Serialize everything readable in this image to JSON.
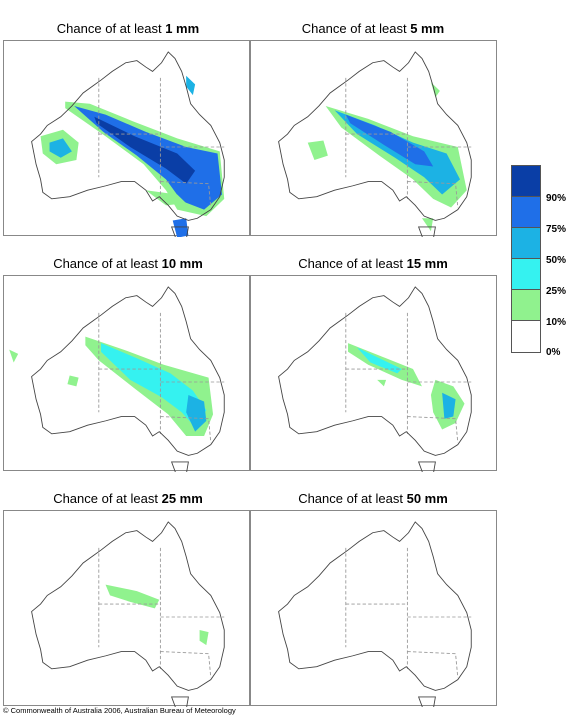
{
  "panels": [
    {
      "prefix": "Chance of at least",
      "amount": "1 mm"
    },
    {
      "prefix": "Chance of at least",
      "amount": "5 mm"
    },
    {
      "prefix": "Chance of at least",
      "amount": "10 mm"
    },
    {
      "prefix": "Chance of at least",
      "amount": "15 mm"
    },
    {
      "prefix": "Chance of at least",
      "amount": "25 mm"
    },
    {
      "prefix": "Chance of at least",
      "amount": "50 mm"
    }
  ],
  "legend": {
    "labels": [
      "90%",
      "75%",
      "50%",
      "25%",
      "10%",
      "0%"
    ],
    "colors": [
      "#0a3ea6",
      "#1f6fe8",
      "#1cb2e4",
      "#35f2f0",
      "#90f28e",
      "#ffffff"
    ]
  },
  "footer": "© Commonwealth of Australia 2006, Australian Bureau of Meteorology"
}
